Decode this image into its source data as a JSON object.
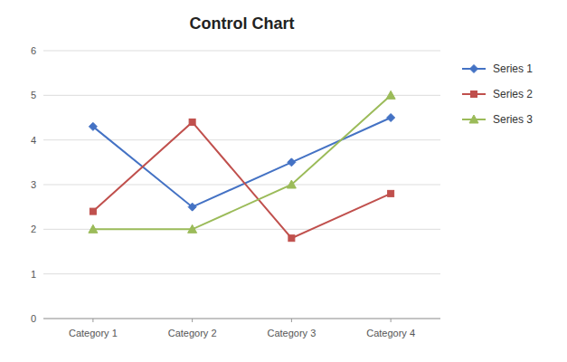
{
  "chart_data": {
    "type": "line",
    "title": "Control Chart",
    "categories": [
      "Category 1",
      "Category 2",
      "Category 3",
      "Category 4"
    ],
    "series": [
      {
        "name": "Series 1",
        "color": "#4472C4",
        "marker": "diamond",
        "values": [
          4.3,
          2.5,
          3.5,
          4.5
        ]
      },
      {
        "name": "Series 2",
        "color": "#C0504D",
        "marker": "square",
        "values": [
          2.4,
          4.4,
          1.8,
          2.8
        ]
      },
      {
        "name": "Series 3",
        "color": "#9BBB59",
        "marker": "triangle",
        "values": [
          2.0,
          2.0,
          3.0,
          5.0
        ]
      }
    ],
    "ylim": [
      0,
      6
    ],
    "yticks": [
      0,
      1,
      2,
      3,
      4,
      5,
      6
    ],
    "grid": true,
    "legend": "right"
  }
}
